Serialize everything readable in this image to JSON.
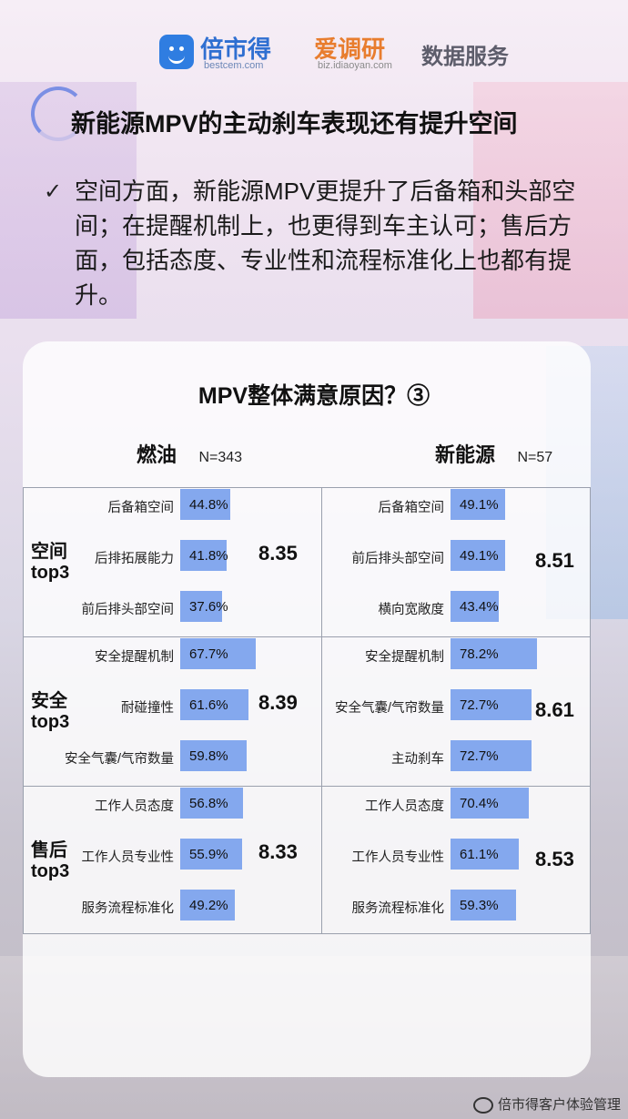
{
  "header": {
    "brand1": "倍市得",
    "brand1_sub": "bestcem.com",
    "brand2": "爱调研",
    "brand2_sub": "biz.idiaoyan.com",
    "brand3": "数据服务"
  },
  "page_title": "新能源MPV的主动刹车表现还有提升空间",
  "bullet": "空间方面，新能源MPV更提升了后备箱和头部空间；在提醒机制上，也更得到车主认可；售后方面，包括态度、专业性和流程标准化上也都有提升。",
  "watermark": "倍市得客户体验管理",
  "colors": {
    "bar": "#84a8ee",
    "grid": "#9aa0ad"
  },
  "chart_data": {
    "type": "bar",
    "title": "MPV整体满意原因？③",
    "groups": [
      {
        "name": "燃油",
        "n": "N=343"
      },
      {
        "name": "新能源",
        "n": "N=57"
      }
    ],
    "categories": [
      {
        "name": "空间\ntop3",
        "fuel": {
          "score": "8.35",
          "items": [
            {
              "label": "后备箱空间",
              "value": 44.8
            },
            {
              "label": "后排拓展能力",
              "value": 41.8
            },
            {
              "label": "前后排头部空间",
              "value": 37.6
            }
          ]
        },
        "nev": {
          "score": "8.51",
          "items": [
            {
              "label": "后备箱空间",
              "value": 49.1
            },
            {
              "label": "前后排头部空间",
              "value": 49.1
            },
            {
              "label": "横向宽敞度",
              "value": 43.4
            }
          ]
        }
      },
      {
        "name": "安全\ntop3",
        "fuel": {
          "score": "8.39",
          "items": [
            {
              "label": "安全提醒机制",
              "value": 67.7
            },
            {
              "label": "耐碰撞性",
              "value": 61.6
            },
            {
              "label": "安全气囊/气帘数量",
              "value": 59.8
            }
          ]
        },
        "nev": {
          "score": "8.61",
          "items": [
            {
              "label": "安全提醒机制",
              "value": 78.2
            },
            {
              "label": "安全气囊/气帘数量",
              "value": 72.7
            },
            {
              "label": "主动刹车",
              "value": 72.7
            }
          ]
        }
      },
      {
        "name": "售后\ntop3",
        "fuel": {
          "score": "8.33",
          "items": [
            {
              "label": "工作人员态度",
              "value": 56.8
            },
            {
              "label": "工作人员专业性",
              "value": 55.9
            },
            {
              "label": "服务流程标准化",
              "value": 49.2
            }
          ]
        },
        "nev": {
          "score": "8.53",
          "items": [
            {
              "label": "工作人员态度",
              "value": 70.4
            },
            {
              "label": "工作人员专业性",
              "value": 61.1
            },
            {
              "label": "服务流程标准化",
              "value": 59.3
            }
          ]
        }
      }
    ]
  }
}
